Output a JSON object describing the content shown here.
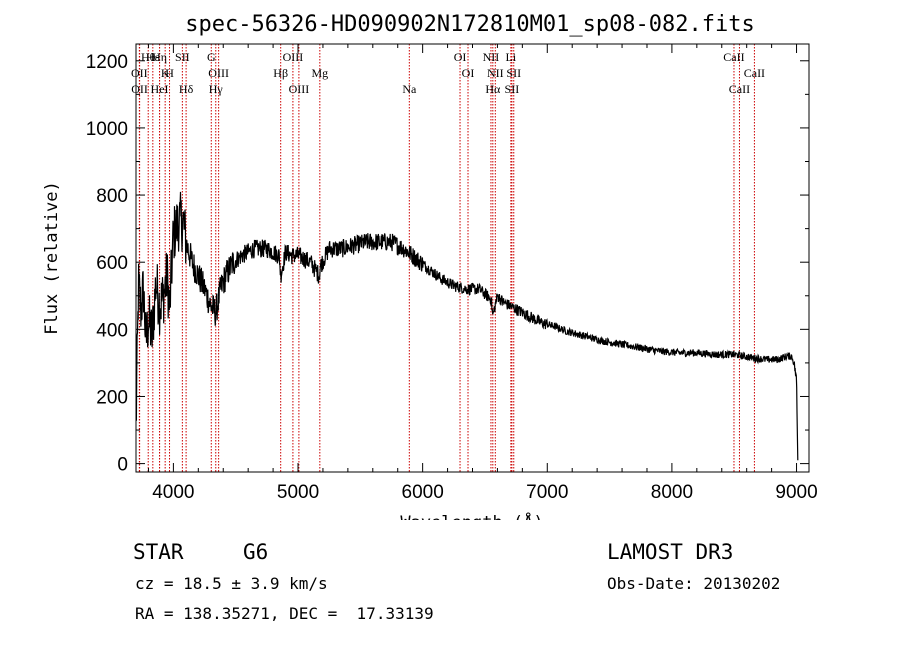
{
  "chart_data": {
    "type": "line",
    "title": "spec-56326-HD090902N172810M01_sp08-082.fits",
    "xlabel": "Wavelength (Å)",
    "ylabel": "Flux (relative)",
    "xlim": [
      3700,
      9100
    ],
    "ylim": [
      -25,
      1250
    ],
    "xticks": [
      4000,
      5000,
      6000,
      7000,
      8000,
      9000
    ],
    "yticks": [
      0,
      200,
      400,
      600,
      800,
      1000,
      1200
    ],
    "line_color": "#000000",
    "marker_color": "#cc0000",
    "spectrum_anchors": {
      "x": [
        3700,
        3720,
        3740,
        3760,
        3780,
        3800,
        3830,
        3860,
        3890,
        3920,
        3950,
        3970,
        4000,
        4040,
        4080,
        4100,
        4150,
        4200,
        4250,
        4300,
        4340,
        4380,
        4420,
        4480,
        4550,
        4650,
        4750,
        4850,
        4861,
        4900,
        4950,
        5000,
        5100,
        5170,
        5180,
        5250,
        5350,
        5450,
        5550,
        5650,
        5750,
        5850,
        5950,
        6050,
        6150,
        6250,
        6350,
        6450,
        6550,
        6563,
        6600,
        6650,
        6750,
        6850,
        6950,
        7050,
        7150,
        7300,
        7450,
        7600,
        7750,
        7900,
        8050,
        8200,
        8350,
        8500,
        8650,
        8750,
        8850,
        8920,
        8960,
        8980,
        9000,
        9010
      ],
      "y": [
        100,
        530,
        460,
        520,
        360,
        430,
        380,
        540,
        470,
        500,
        560,
        460,
        680,
        720,
        720,
        660,
        600,
        560,
        520,
        470,
        450,
        520,
        560,
        600,
        620,
        640,
        640,
        620,
        560,
        630,
        620,
        620,
        600,
        560,
        590,
        640,
        640,
        650,
        660,
        660,
        660,
        640,
        610,
        580,
        550,
        530,
        520,
        520,
        490,
        440,
        500,
        480,
        460,
        440,
        420,
        410,
        395,
        380,
        365,
        355,
        345,
        335,
        330,
        330,
        325,
        325,
        315,
        310,
        310,
        320,
        320,
        300,
        250,
        10
      ]
    },
    "markers": [
      {
        "label": "Hθ",
        "wavelength": 3798
      },
      {
        "label": "OII",
        "wavelength": 3727
      },
      {
        "label": "OII",
        "wavelength": 3729
      },
      {
        "label": "Hε",
        "wavelength": 3835
      },
      {
        "label": "K",
        "wavelength": 3934
      },
      {
        "label": "HeI",
        "wavelength": 3889
      },
      {
        "label": "Hη",
        "wavelength": 3889
      },
      {
        "label": "H",
        "wavelength": 3969
      },
      {
        "label": "Hδ",
        "wavelength": 4102
      },
      {
        "label": "SII",
        "wavelength": 4072
      },
      {
        "label": "OIII",
        "wavelength": 4363
      },
      {
        "label": "Hγ",
        "wavelength": 4340
      },
      {
        "label": "G",
        "wavelength": 4304
      },
      {
        "label": "Hβ",
        "wavelength": 4861
      },
      {
        "label": "OIII",
        "wavelength": 5007
      },
      {
        "label": "OIII",
        "wavelength": 4959
      },
      {
        "label": "Mg",
        "wavelength": 5175
      },
      {
        "label": "Na",
        "wavelength": 5893
      },
      {
        "label": "OI",
        "wavelength": 6300
      },
      {
        "label": "OI",
        "wavelength": 6364
      },
      {
        "label": "Hα",
        "wavelength": 6563
      },
      {
        "label": "NII",
        "wavelength": 6548
      },
      {
        "label": "NII",
        "wavelength": 6583
      },
      {
        "label": "SII",
        "wavelength": 6716
      },
      {
        "label": "Li",
        "wavelength": 6708
      },
      {
        "label": "SII",
        "wavelength": 6731
      },
      {
        "label": "CaII",
        "wavelength": 8542
      },
      {
        "label": "CaII",
        "wavelength": 8498
      },
      {
        "label": "CaII",
        "wavelength": 8662
      }
    ]
  },
  "info": {
    "object_class": "STAR",
    "subclass": "G6",
    "survey": "LAMOST DR3",
    "cz": "cz = 18.5 ± 3.9 km/s",
    "obs_date": "Obs-Date: 20130202",
    "coords": "RA = 138.35271, DEC =  17.33139"
  }
}
